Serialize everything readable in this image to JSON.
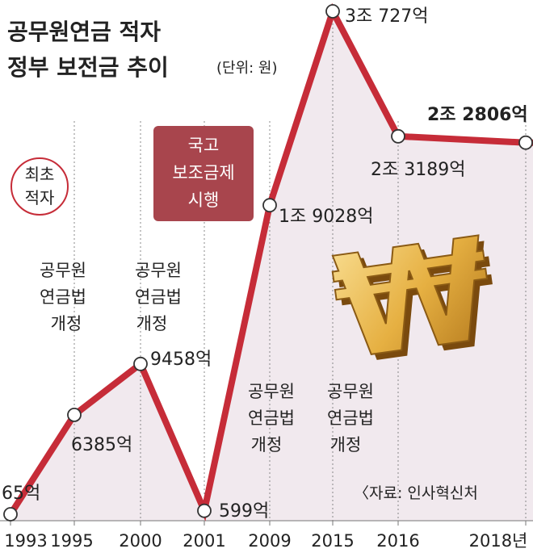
{
  "title_line1": "공무원연금 적자",
  "title_line2": "정부 보전금 추이",
  "unit": "(단위: 원)",
  "source": "〈자료: 인사혁신처",
  "colors": {
    "line": "#c62c38",
    "area": "#f1e9ee",
    "box": "#a8454d",
    "text": "#222222",
    "gold": "#e0a838"
  },
  "notes": {
    "first_deficit": [
      "최초",
      "적자"
    ],
    "subsidy": [
      "국고",
      "보조금제",
      "시행"
    ],
    "reform_1995": [
      "공무원",
      "연금법",
      "개정"
    ],
    "reform_2000": [
      "공무원",
      "연금법",
      "개정"
    ],
    "reform_2009": [
      "공무원",
      "연금법",
      "개정"
    ],
    "reform_2015": [
      "공무원",
      "연금법",
      "개정"
    ]
  },
  "currency_symbol": "₩",
  "chart_data": {
    "type": "line",
    "categories": [
      "1993",
      "1995",
      "2000",
      "2001",
      "2009",
      "2015",
      "2016",
      "2018년"
    ],
    "values_eok": [
      65,
      6385,
      9458,
      599,
      19028,
      30727,
      23189,
      22806
    ],
    "value_labels": [
      "65억",
      "6385억",
      "9458억",
      "599억",
      "1조 9028억",
      "3조 727억",
      "2조 3189억",
      "2조 2806억"
    ],
    "ylim": [
      0,
      30727
    ]
  }
}
